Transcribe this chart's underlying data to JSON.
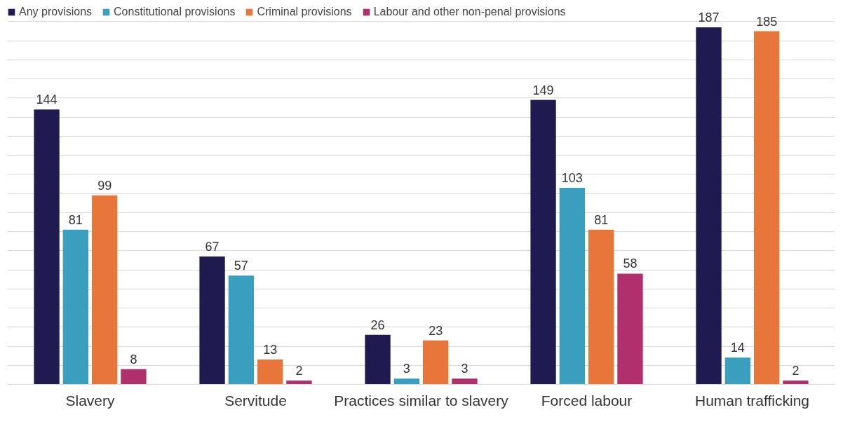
{
  "chart_data": {
    "type": "bar",
    "categories": [
      "Slavery",
      "Servitude",
      "Practices similar to slavery",
      "Forced labour",
      "Human trafficking"
    ],
    "series": [
      {
        "name": "Any provisions",
        "color": "#1f1a4f",
        "values": [
          144,
          67,
          26,
          149,
          187
        ]
      },
      {
        "name": "Constitutional provisions",
        "color": "#3a9ebf",
        "values": [
          81,
          57,
          3,
          103,
          14
        ]
      },
      {
        "name": "Criminal provisions",
        "color": "#e8763a",
        "values": [
          99,
          13,
          23,
          81,
          185
        ]
      },
      {
        "name": "Labour and other non-penal provisions",
        "color": "#b0306e",
        "values": [
          8,
          2,
          3,
          58,
          2
        ]
      }
    ],
    "yticks": [
      {
        "value": 0,
        "label": null
      },
      {
        "value": 10,
        "label": null
      },
      {
        "value": 20,
        "label": null
      },
      {
        "value": 30,
        "label": null
      },
      {
        "value": 40,
        "label": null
      },
      {
        "value": 50,
        "label": null
      },
      {
        "value": 60,
        "label": null
      },
      {
        "value": 70,
        "label": null
      },
      {
        "value": 80,
        "label": null
      },
      {
        "value": 90,
        "label": null
      },
      {
        "value": 100,
        "label": null
      },
      {
        "value": 110,
        "label": null
      },
      {
        "value": 120,
        "label": null
      },
      {
        "value": 130,
        "label": null
      },
      {
        "value": 140,
        "label": null
      },
      {
        "value": 150,
        "label": null
      },
      {
        "value": 160,
        "label": null
      },
      {
        "value": 170,
        "label": null
      },
      {
        "value": 180,
        "label": null
      },
      {
        "value": 190,
        "label": null
      }
    ],
    "tick_labels": "x",
    "grid": "y",
    "legend": "top left",
    "data_labels": true
  }
}
